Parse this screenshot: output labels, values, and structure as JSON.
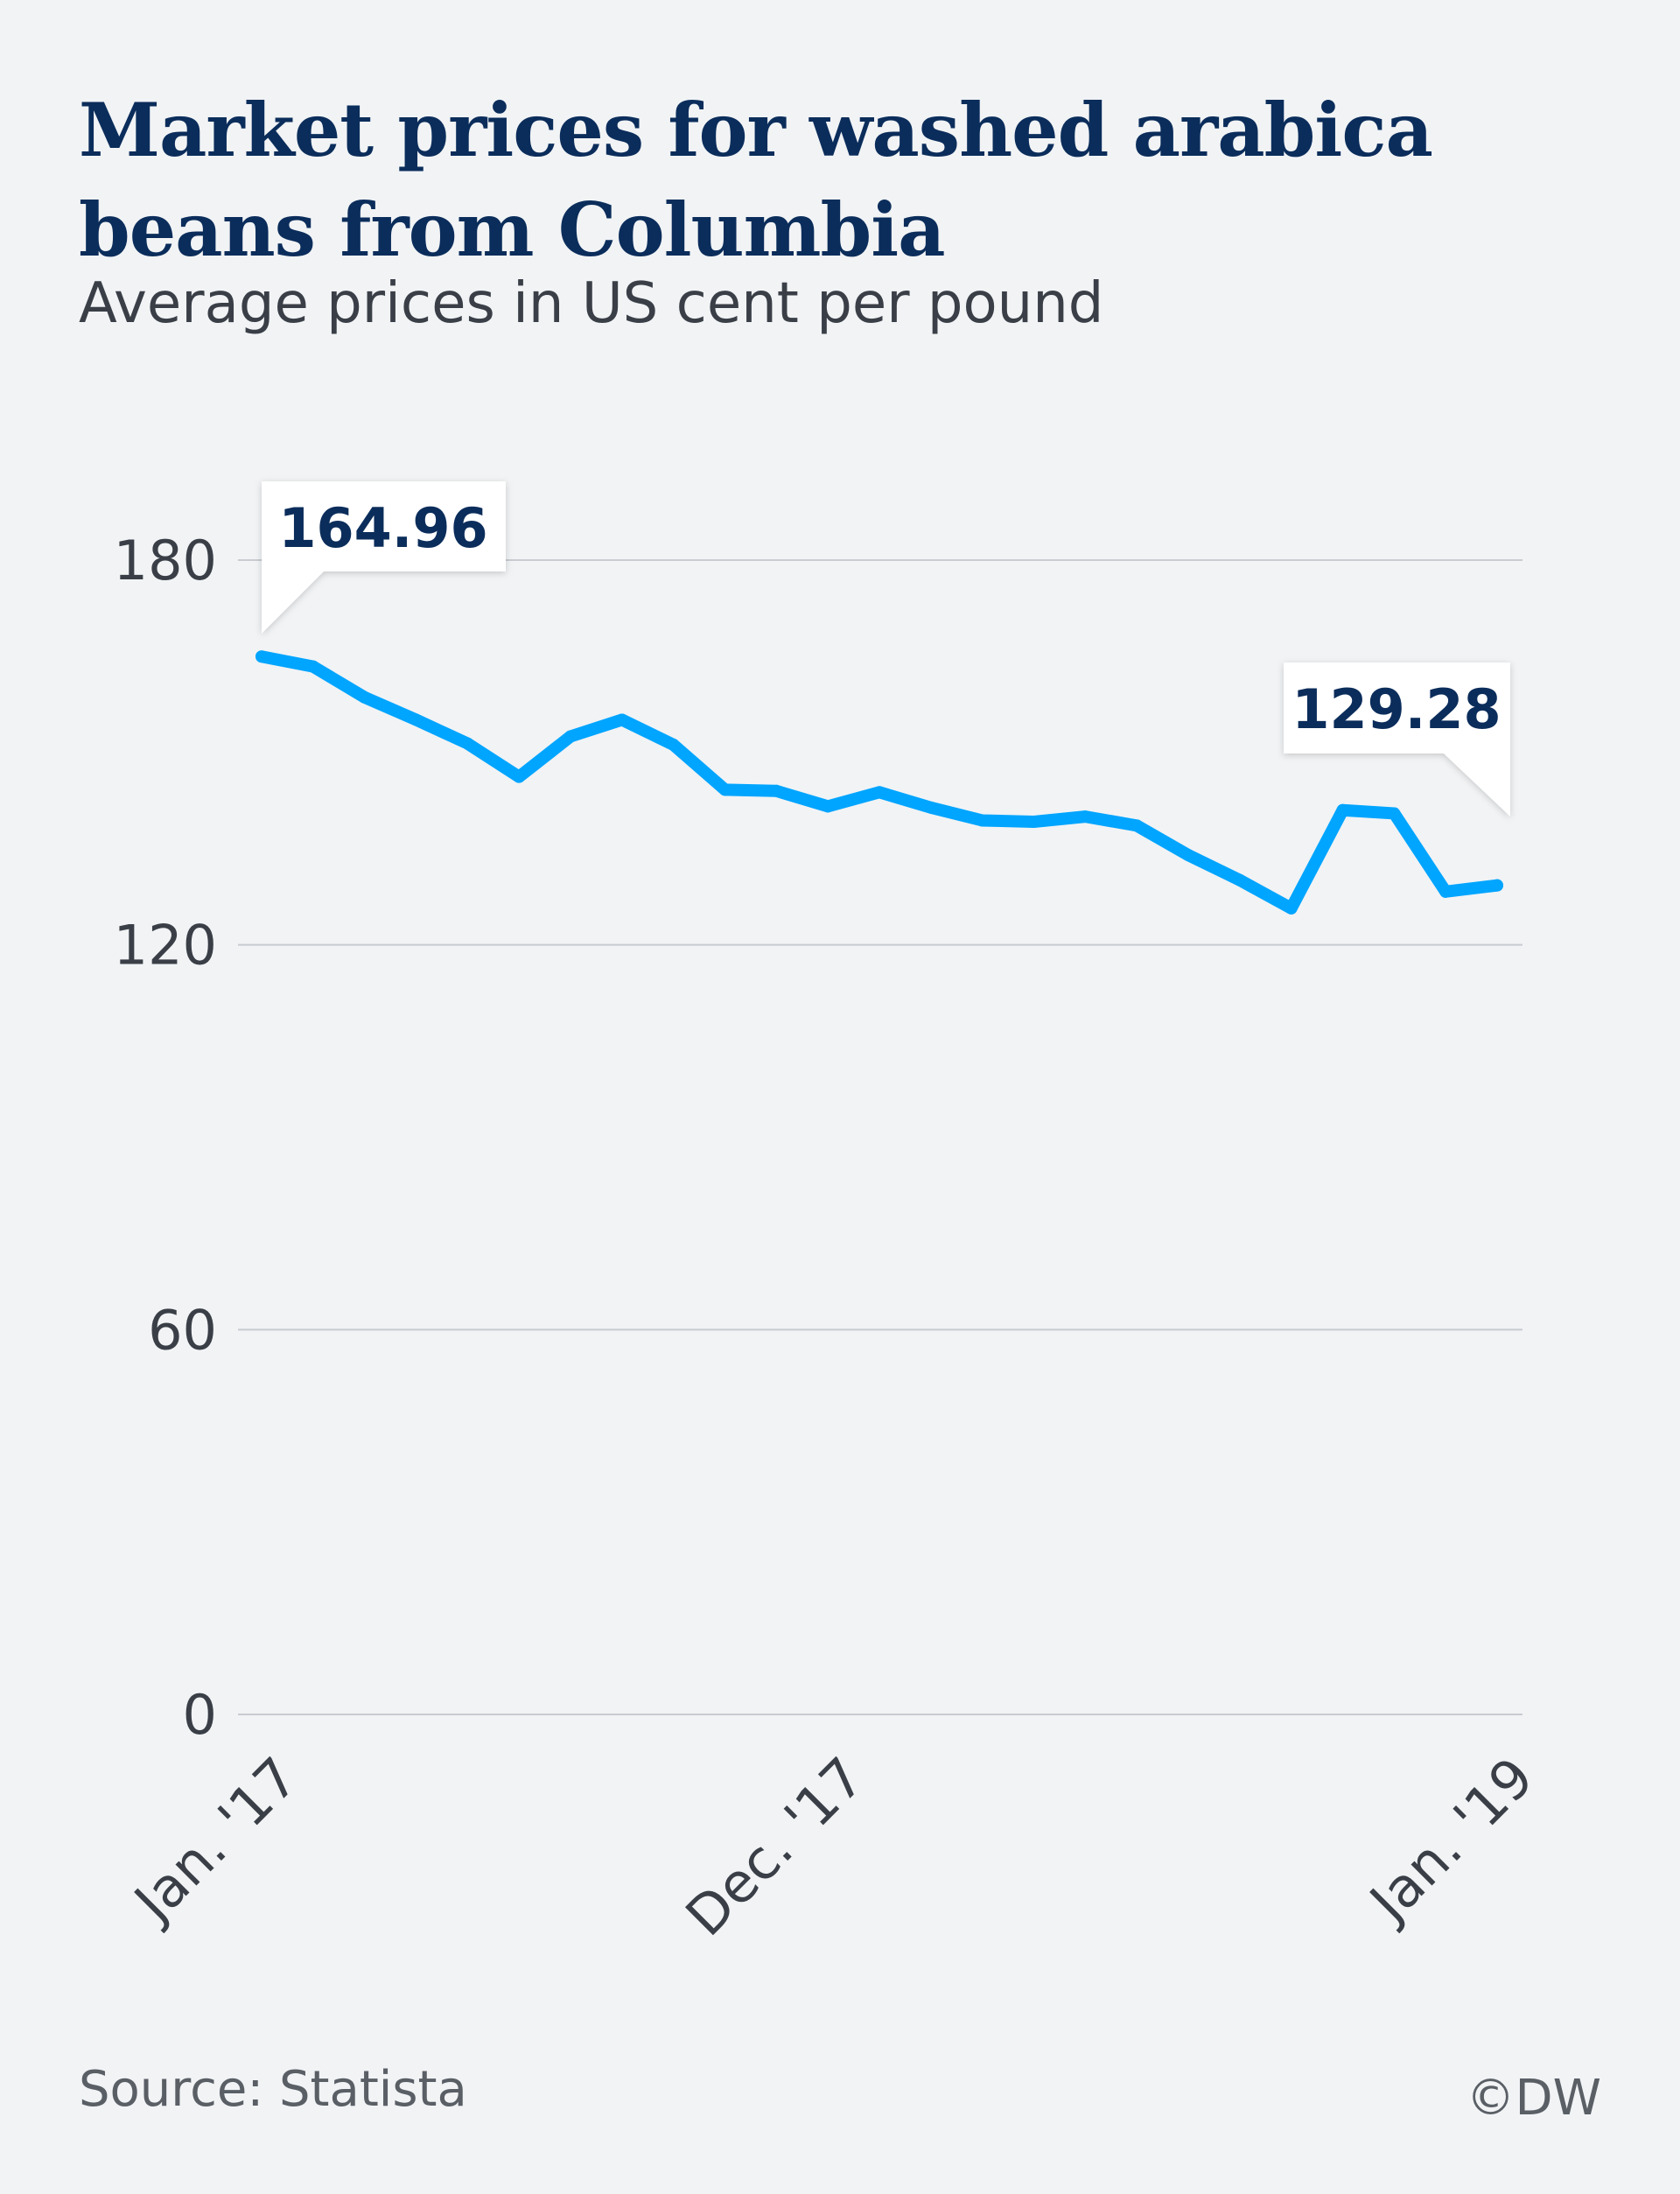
{
  "header": {
    "title": "Market prices for washed arabica beans from Columbia",
    "subtitle": "Average prices in US cent per pound"
  },
  "footer": {
    "source": "Source: Statista",
    "credit": "©DW"
  },
  "colors": {
    "line": "#00a5ff",
    "title": "#0b2d5b",
    "grid": "#c8ccd1",
    "background": "#f1f3f5"
  },
  "chart_data": {
    "type": "line",
    "title": "Market prices for washed arabica beans from Columbia",
    "ylabel": "Average prices in US cent per pound",
    "ylim": [
      0,
      180
    ],
    "yticks": [
      "180",
      "120",
      "60",
      "0"
    ],
    "ytick_values": [
      180,
      120,
      60,
      0
    ],
    "xticks": [
      {
        "index": 0,
        "label": "Jan. '17"
      },
      {
        "index": 11,
        "label": "Dec. '17"
      },
      {
        "index": 24,
        "label": "Jan. '19"
      }
    ],
    "grid": true,
    "series": [
      {
        "name": "Price",
        "values": [
          164.96,
          163.4,
          158.6,
          155.1,
          151.4,
          146.2,
          152.5,
          155.1,
          151.2,
          144.2,
          144.0,
          141.6,
          143.8,
          141.4,
          139.4,
          139.2,
          140.0,
          138.6,
          134.0,
          130.1,
          125.7,
          141.0,
          140.5,
          128.3,
          129.28
        ]
      }
    ],
    "annotations": [
      {
        "index": 0,
        "label": "164.96"
      },
      {
        "index": 24,
        "label": "129.28"
      }
    ]
  }
}
